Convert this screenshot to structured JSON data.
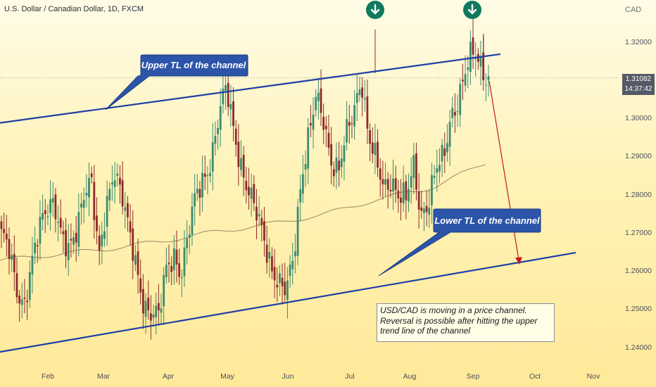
{
  "title": "U.S. Dollar / Canadian Dollar, 1D, FXCM",
  "currency_unit": "CAD",
  "last_price": "1.31082",
  "countdown": "14:37:42",
  "callouts": {
    "upper": "Upper TL of the channel",
    "lower": "Lower TL of the channel"
  },
  "note_lines": [
    "USD/CAD is moving in a price channel.",
    "Reversal is possible after hitting the upper",
    "trend line of the channel"
  ],
  "colors": {
    "background_top": "#fffbe6",
    "background_bottom": "#ffe999",
    "bull_candle": "#3d8b6e",
    "bear_candle": "#8c2a2a",
    "trend_line": "#1d3fa5",
    "moving_average": "#8a7a5c",
    "projection_arrow": "#c21a1a",
    "callout_fill": "#2c54a8",
    "marker": "#0f7a5c"
  },
  "icons": [
    "down-arrow-icon",
    "down-arrow-icon"
  ],
  "chart_data": {
    "type": "candlestick",
    "symbol": "USD/CAD",
    "timeframe": "1D",
    "ylim": [
      1.2335,
      1.3275
    ],
    "y_ticks": [
      "1.32000",
      "1.31000",
      "1.30000",
      "1.29000",
      "1.28000",
      "1.27000",
      "1.26000",
      "1.25000",
      "1.24000"
    ],
    "x_ticks": [
      "Feb",
      "Mar",
      "Apr",
      "May",
      "Jun",
      "Jul",
      "Aug",
      "Sep",
      "Oct",
      "Nov"
    ],
    "trend_lines": [
      {
        "name": "Upper TL of the channel",
        "start": [
          "Jan",
          1.299
        ],
        "end": [
          "Sep",
          1.317
        ]
      },
      {
        "name": "Lower TL of the channel",
        "start": [
          "Jan",
          1.239
        ],
        "end": [
          "Oct",
          1.265
        ]
      }
    ],
    "projection": {
      "from": 1.31,
      "to": 1.262
    },
    "moving_average_shape": [
      1.263,
      1.2645,
      1.266,
      1.268,
      1.2705,
      1.2725,
      1.275,
      1.279,
      1.282,
      1.2885
    ],
    "candles_shape": [
      1.27,
      1.265,
      1.255,
      1.252,
      1.262,
      1.27,
      1.276,
      1.28,
      1.27,
      1.264,
      1.27,
      1.282,
      1.285,
      1.262,
      1.276,
      1.288,
      1.282,
      1.27,
      1.26,
      1.252,
      1.25,
      1.248,
      1.26,
      1.265,
      1.26,
      1.27,
      1.28,
      1.285,
      1.29,
      1.3,
      1.308,
      1.298,
      1.288,
      1.28,
      1.275,
      1.27,
      1.262,
      1.256,
      1.254,
      1.265,
      1.285,
      1.295,
      1.305,
      1.3,
      1.29,
      1.286,
      1.295,
      1.302,
      1.312,
      1.295,
      1.288,
      1.282,
      1.285,
      1.28,
      1.278,
      1.288,
      1.276,
      1.278,
      1.286,
      1.29,
      1.302,
      1.305,
      1.312,
      1.318,
      1.315,
      1.31
    ]
  }
}
